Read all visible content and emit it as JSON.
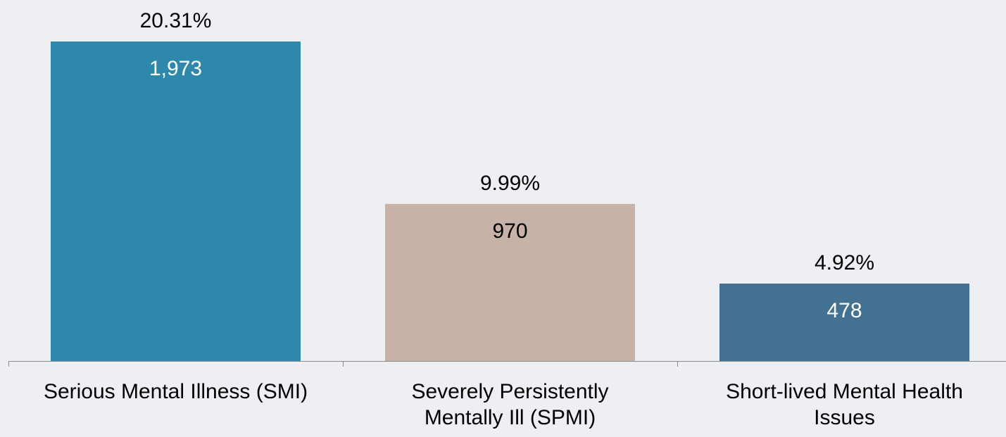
{
  "chart_data": {
    "type": "bar",
    "title": "",
    "xlabel": "",
    "ylabel": "",
    "categories": [
      [
        "Serious Mental Illness (SMI)"
      ],
      [
        "Severely Persistently",
        "Mentally Ill (SPMI)"
      ],
      [
        "Short-lived Mental Health",
        "Issues"
      ]
    ],
    "values": [
      1973,
      970,
      478
    ],
    "value_labels": [
      "1,973",
      "970",
      "478"
    ],
    "percent_labels": [
      "20.31%",
      "9.99%",
      "4.92%"
    ],
    "colors": [
      "#2E88AB",
      "#C6B2A7",
      "#447191"
    ],
    "count_label_colors": [
      "#FFFFFF",
      "#000000",
      "#FFFFFF"
    ],
    "grid": false,
    "legend": "none"
  }
}
